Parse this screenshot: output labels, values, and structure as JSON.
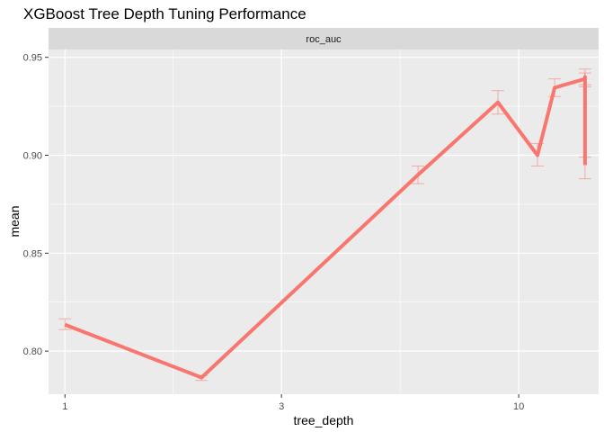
{
  "chart_data": {
    "type": "line",
    "title": "XGBoost Tree Depth Tuning Performance",
    "facet": "roc_auc",
    "xlabel": "tree_depth",
    "ylabel": "mean",
    "x_scale": "log10",
    "xlim": [
      0.92,
      15.0
    ],
    "ylim": [
      0.778,
      0.954
    ],
    "x_ticks": [
      1,
      3,
      10
    ],
    "x_tick_labels": [
      "1",
      "3",
      "10"
    ],
    "y_ticks": [
      0.8,
      0.85,
      0.9,
      0.95
    ],
    "y_tick_labels": [
      "0.80",
      "0.85",
      "0.90",
      "0.95"
    ],
    "grid": true,
    "legend": "none",
    "colors": {
      "line": "#F8766D",
      "panel": "#EBEBEB",
      "strip": "#D9D9D9",
      "grid": "#FFFFFF"
    },
    "series": [
      {
        "points": [
          {
            "x": 1,
            "y": 0.8135,
            "lo": 0.811,
            "hi": 0.8165
          },
          {
            "x": 2,
            "y": 0.7865,
            "lo": 0.785,
            "hi": 0.7875
          },
          {
            "x": 6,
            "y": 0.89,
            "lo": 0.8855,
            "hi": 0.8945
          },
          {
            "x": 9,
            "y": 0.927,
            "lo": 0.921,
            "hi": 0.933
          },
          {
            "x": 11,
            "y": 0.9,
            "lo": 0.8945,
            "hi": 0.906
          },
          {
            "x": 12,
            "y": 0.9345,
            "lo": 0.93,
            "hi": 0.939
          },
          {
            "x": 14,
            "y": 0.939,
            "lo": 0.935,
            "hi": 0.942
          },
          {
            "x": 14,
            "y": 0.94,
            "lo": 0.936,
            "hi": 0.944
          },
          {
            "x": 14,
            "y": 0.895,
            "lo": 0.888,
            "hi": 0.899
          }
        ]
      }
    ]
  }
}
